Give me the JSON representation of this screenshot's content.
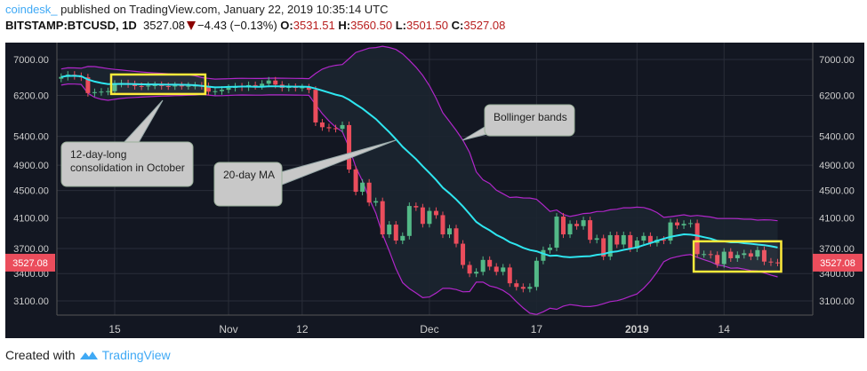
{
  "header": {
    "publisher": "coindesk_",
    "published_text": "published on TradingView.com, January 22, 2019 10:35:14 UTC",
    "symbol": "BITSTAMP:BTCUSD, 1D",
    "last": "3527.08",
    "change": "−4.43 (−0.13%)",
    "o_label": "O:",
    "o": "3531.51",
    "h_label": "H:",
    "h": "3560.50",
    "l_label": "L:",
    "l": "3501.50",
    "c_label": "C:",
    "c": "3527.08"
  },
  "footer": {
    "created_with": "Created with",
    "brand": "TradingView"
  },
  "chart_data": {
    "type": "candlestick",
    "symbol": "BITSTAMP:BTCUSD",
    "interval": "1D",
    "y_scale": "log",
    "ylim": [
      2900,
      7400
    ],
    "y_ticks": [
      "7000.00",
      "6200.00",
      "5400.00",
      "4900.00",
      "4500.00",
      "4100.00",
      "3700.00",
      "3400.00",
      "3100.00"
    ],
    "x_ticks": [
      {
        "date": "2018-10-15",
        "label": "15"
      },
      {
        "date": "2018-11-01",
        "label": "Nov"
      },
      {
        "date": "2018-11-12",
        "label": "12"
      },
      {
        "date": "2018-12-01",
        "label": "Dec"
      },
      {
        "date": "2018-12-17",
        "label": "17"
      },
      {
        "date": "2019-01-01",
        "label": "2019"
      },
      {
        "date": "2019-01-14",
        "label": "14"
      }
    ],
    "date_range": [
      "2018-10-07",
      "2019-01-22"
    ],
    "first_open": 6560,
    "close": [
      6600,
      6650,
      6620,
      6590,
      6250,
      6270,
      6280,
      6290,
      6450,
      6460,
      6440,
      6400,
      6390,
      6410,
      6420,
      6400,
      6395,
      6410,
      6400,
      6405,
      6410,
      6400,
      6280,
      6290,
      6320,
      6360,
      6390,
      6370,
      6420,
      6400,
      6450,
      6520,
      6430,
      6360,
      6380,
      6360,
      6370,
      6320,
      5660,
      5570,
      5550,
      5540,
      5610,
      4830,
      4480,
      4620,
      4320,
      4340,
      3880,
      4010,
      3800,
      3860,
      4270,
      4250,
      4020,
      4200,
      4140,
      3880,
      3960,
      3760,
      3500,
      3400,
      3420,
      3560,
      3480,
      3420,
      3470,
      3290,
      3250,
      3230,
      3250,
      3550,
      3680,
      3710,
      4120,
      3880,
      4020,
      3990,
      4070,
      3810,
      3830,
      3600,
      3870,
      3750,
      3870,
      3700,
      3800,
      3860,
      3770,
      3810,
      3800,
      4040,
      4000,
      4020,
      4030,
      3630,
      3630,
      3620,
      3510,
      3660,
      3580,
      3620,
      3640,
      3600,
      3680,
      3540,
      3530,
      3527.08
    ],
    "last_price_label": "3527.08",
    "indicators": [
      "20-day MA",
      "Bollinger bands"
    ],
    "annotations": [
      {
        "text": "12-day-long consolidation in October"
      },
      {
        "text": "20-day MA"
      },
      {
        "text": "Bollinger bands"
      }
    ],
    "highlight_boxes": [
      [
        "2018-10-15",
        "2018-10-28"
      ],
      [
        "2019-01-10",
        "2019-01-22"
      ]
    ],
    "colors": {
      "bg": "#131722",
      "grid": "#2a2e39",
      "up": "#53b987",
      "down": "#eb4d5c",
      "ma": "#2ee6f0",
      "bands": "#b026c9",
      "band_fill": "#1c2530",
      "highlight": "#ffeb3b",
      "price_label": "#eb4d5c"
    }
  }
}
